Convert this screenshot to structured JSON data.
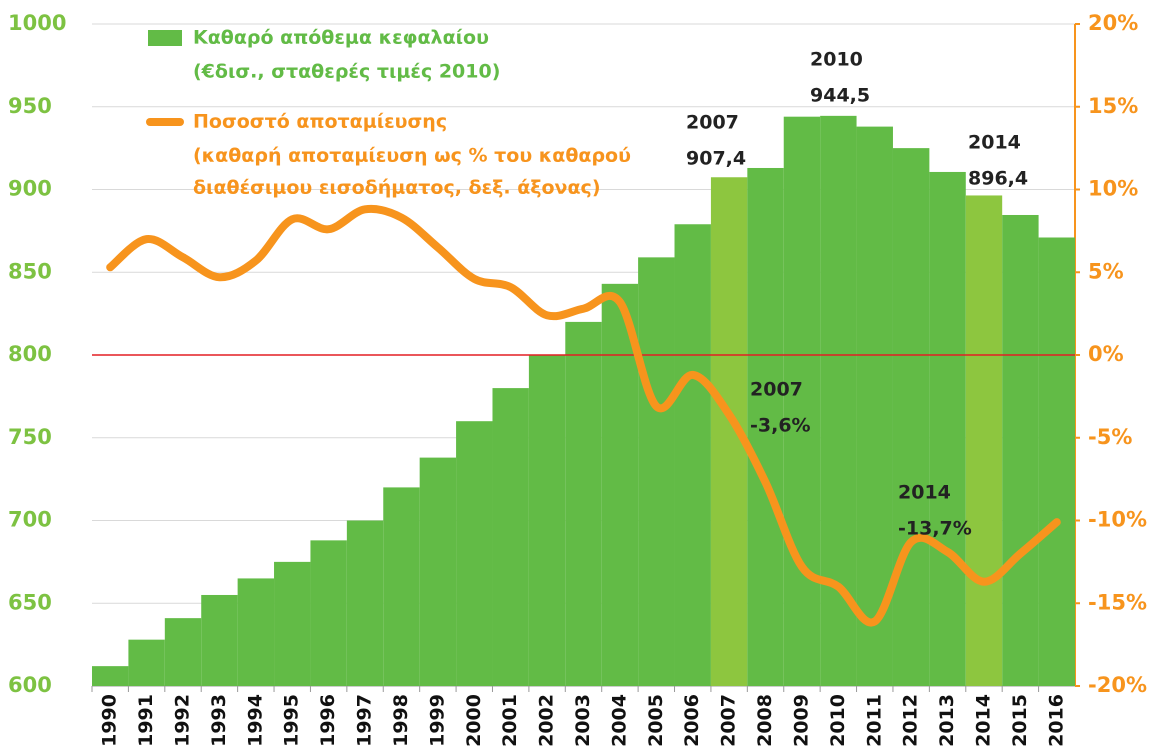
{
  "chart_data": {
    "type": "bar-line",
    "categories": [
      "1990",
      "1991",
      "1992",
      "1993",
      "1994",
      "1995",
      "1996",
      "1997",
      "1998",
      "1999",
      "2000",
      "2001",
      "2002",
      "2003",
      "2004",
      "2005",
      "2006",
      "2007",
      "2008",
      "2009",
      "2010",
      "2011",
      "2012",
      "2013",
      "2014",
      "2015",
      "2016"
    ],
    "series": [
      {
        "name": "Καθαρό απόθεμα κεφαλαίου",
        "name_line2": "(€δισ., σταθερές τιμές 2010)",
        "type": "bar",
        "color": "#62bb46",
        "colors": [
          "#62bb46",
          "#62bb46",
          "#62bb46",
          "#62bb46",
          "#62bb46",
          "#62bb46",
          "#62bb46",
          "#62bb46",
          "#62bb46",
          "#62bb46",
          "#62bb46",
          "#62bb46",
          "#62bb46",
          "#62bb46",
          "#62bb46",
          "#62bb46",
          "#62bb46",
          "#8dc63f",
          "#62bb46",
          "#62bb46",
          "#62bb46",
          "#62bb46",
          "#62bb46",
          "#62bb46",
          "#8dc63f",
          "#62bb46",
          "#62bb46"
        ],
        "values": [
          612,
          628,
          641,
          655,
          665,
          675,
          688,
          700,
          720,
          738,
          760,
          780,
          800,
          820,
          843,
          859,
          879,
          907.4,
          913,
          944,
          944.5,
          938,
          925,
          910.6,
          896.4,
          884.6,
          871
        ]
      },
      {
        "name": "Ποσοστό αποταμίευσης",
        "name_line2": "(καθαρή αποταμίευση ως % του καθαρού",
        "name_line3": "διαθέσιμου εισοδήματος, δεξ. άξονας)",
        "type": "line",
        "axis": "y2",
        "color": "#f7941d",
        "values": [
          5.3,
          7.0,
          5.9,
          4.7,
          5.7,
          8.2,
          7.6,
          8.8,
          8.3,
          6.5,
          4.6,
          4.1,
          2.4,
          2.8,
          3.2,
          -3.1,
          -1.2,
          -3.6,
          -7.7,
          -12.8,
          -14.0,
          -16.1,
          -11.3,
          -11.9,
          -13.7,
          -12.0,
          -10.1
        ]
      }
    ],
    "annotations": [
      {
        "line1": "2007",
        "line2": "907,4"
      },
      {
        "line1": "2010",
        "line2": "944,5"
      },
      {
        "line1": "2014",
        "line2": "896,4"
      },
      {
        "line1": "2007",
        "line2": "-3,6%"
      },
      {
        "line1": "2014",
        "line2": "-13,7%"
      }
    ],
    "ylim": [
      600,
      1000
    ],
    "yticks": [
      600,
      650,
      700,
      750,
      800,
      850,
      900,
      950,
      1000
    ],
    "y2lim": [
      -20,
      20
    ],
    "y2ticks": [
      {
        "value": -20,
        "label": "-20%"
      },
      {
        "value": -15,
        "label": "-15%"
      },
      {
        "value": -10,
        "label": "-10%"
      },
      {
        "value": -5,
        "label": "-5%"
      },
      {
        "value": 0,
        "label": "0%"
      },
      {
        "value": 5,
        "label": "5%"
      },
      {
        "value": 10,
        "label": "10%"
      },
      {
        "value": 15,
        "label": "15%"
      },
      {
        "value": 20,
        "label": "20%"
      }
    ],
    "reference_line": {
      "axis": "y2",
      "value": 0,
      "color": "#e31e24"
    },
    "grid": true,
    "grid_color": "#d9d9d9",
    "y_tick_color": "#7dc242",
    "y2_tick_color": "#f7941d"
  }
}
